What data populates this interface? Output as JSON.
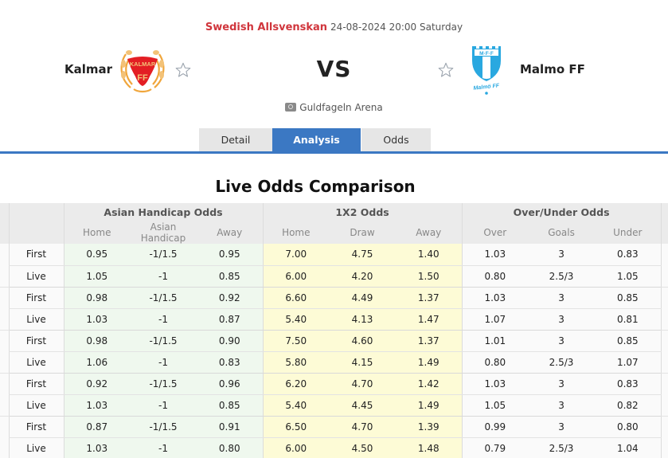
{
  "match": {
    "league": "Swedish Allsvenskan",
    "datetime": "24-08-2024 20:00 Saturday",
    "vs_label": "VS",
    "home_team": {
      "name": "Kalmar",
      "logo_text_top": "KALMAR",
      "logo_text_bottom": "FF",
      "logo_colors": {
        "ring": "#f0a63c",
        "shield": "#e31e24"
      }
    },
    "away_team": {
      "name": "Malmo FF",
      "logo_text_top": "M·F·F",
      "logo_text_bottom": "Malmö FF",
      "logo_colors": {
        "shield": "#29a8e0"
      }
    },
    "favorite_icon": "star-outline-icon",
    "venue_icon": "stadium-icon",
    "venue": "Guldfageln Arena"
  },
  "tabs": [
    {
      "label": "Detail",
      "active": false
    },
    {
      "label": "Analysis",
      "active": true
    },
    {
      "label": "Odds",
      "active": false
    }
  ],
  "colors": {
    "accent": "#3b78c3",
    "league": "#d0353c",
    "ah_bg": "#eff8ee",
    "x12_bg": "#fdfbd6"
  },
  "odds_section": {
    "title": "Live Odds Comparison",
    "groups": {
      "ah": "Asian Handicap Odds",
      "x12": "1X2 Odds",
      "ou": "Over/Under Odds"
    },
    "subheaders": {
      "ah": [
        "Home",
        "Asian Handicap",
        "Away"
      ],
      "x12": [
        "Home",
        "Draw",
        "Away"
      ],
      "ou": [
        "Over",
        "Goals",
        "Under"
      ]
    },
    "rows": [
      {
        "type": "First",
        "ah": [
          "0.95",
          "-1/1.5",
          "0.95"
        ],
        "x12": [
          "7.00",
          "4.75",
          "1.40"
        ],
        "ou": [
          "1.03",
          "3",
          "0.83"
        ]
      },
      {
        "type": "Live",
        "ah": [
          "1.05",
          "-1",
          "0.85"
        ],
        "x12": [
          "6.00",
          "4.20",
          "1.50"
        ],
        "ou": [
          "0.80",
          "2.5/3",
          "1.05"
        ]
      },
      {
        "type": "First",
        "ah": [
          "0.98",
          "-1/1.5",
          "0.92"
        ],
        "x12": [
          "6.60",
          "4.49",
          "1.37"
        ],
        "ou": [
          "1.03",
          "3",
          "0.85"
        ]
      },
      {
        "type": "Live",
        "ah": [
          "1.03",
          "-1",
          "0.87"
        ],
        "x12": [
          "5.40",
          "4.13",
          "1.47"
        ],
        "ou": [
          "1.07",
          "3",
          "0.81"
        ]
      },
      {
        "type": "First",
        "ah": [
          "0.98",
          "-1/1.5",
          "0.90"
        ],
        "x12": [
          "7.50",
          "4.60",
          "1.37"
        ],
        "ou": [
          "1.01",
          "3",
          "0.85"
        ]
      },
      {
        "type": "Live",
        "ah": [
          "1.06",
          "-1",
          "0.83"
        ],
        "x12": [
          "5.80",
          "4.15",
          "1.49"
        ],
        "ou": [
          "0.80",
          "2.5/3",
          "1.07"
        ]
      },
      {
        "type": "First",
        "ah": [
          "0.92",
          "-1/1.5",
          "0.96"
        ],
        "x12": [
          "6.20",
          "4.70",
          "1.42"
        ],
        "ou": [
          "1.03",
          "3",
          "0.83"
        ]
      },
      {
        "type": "Live",
        "ah": [
          "1.03",
          "-1",
          "0.85"
        ],
        "x12": [
          "5.40",
          "4.45",
          "1.49"
        ],
        "ou": [
          "1.05",
          "3",
          "0.82"
        ]
      },
      {
        "type": "First",
        "ah": [
          "0.87",
          "-1/1.5",
          "0.91"
        ],
        "x12": [
          "6.50",
          "4.70",
          "1.39"
        ],
        "ou": [
          "0.99",
          "3",
          "0.80"
        ]
      },
      {
        "type": "Live",
        "ah": [
          "1.03",
          "-1",
          "0.80"
        ],
        "x12": [
          "6.00",
          "4.50",
          "1.48"
        ],
        "ou": [
          "0.79",
          "2.5/3",
          "1.04"
        ]
      }
    ]
  }
}
